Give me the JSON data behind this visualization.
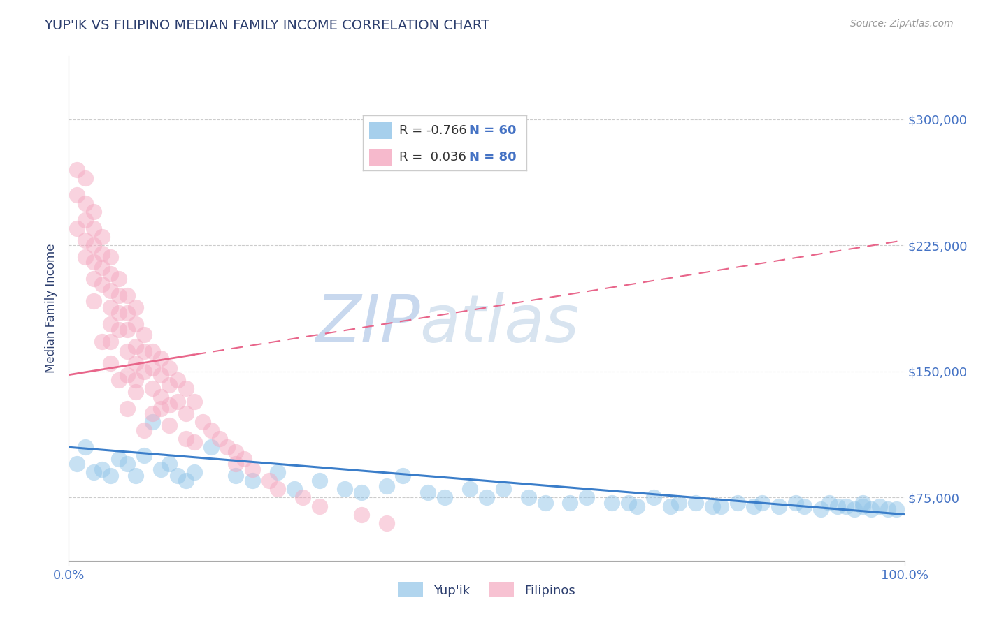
{
  "title": "YUP'IK VS FILIPINO MEDIAN FAMILY INCOME CORRELATION CHART",
  "source_text": "Source: ZipAtlas.com",
  "ylabel": "Median Family Income",
  "xlim": [
    0.0,
    1.0
  ],
  "ylim": [
    37500,
    337500
  ],
  "yticks": [
    75000,
    150000,
    225000,
    300000
  ],
  "ytick_labels": [
    "$75,000",
    "$150,000",
    "$225,000",
    "$300,000"
  ],
  "xticks": [
    0.0,
    1.0
  ],
  "xtick_labels": [
    "0.0%",
    "100.0%"
  ],
  "blue_color": "#90c4e8",
  "pink_color": "#f4a8c0",
  "blue_line_color": "#3a7dc9",
  "pink_line_color": "#e8658a",
  "title_color": "#2c3e6e",
  "axis_label_color": "#2c3e6e",
  "tick_label_color": "#4472c4",
  "watermark_color": "#dce6f5",
  "legend_text_color": "#333333",
  "legend_n_color": "#4472c4",
  "legend_R_blue": "R = -0.766",
  "legend_N_blue": "N = 60",
  "legend_R_pink": "R =  0.036",
  "legend_N_pink": "N = 80",
  "blue_intercept": 105000,
  "blue_slope": -40000,
  "pink_intercept": 148000,
  "pink_slope": 80000,
  "blue_scatter_x": [
    0.01,
    0.02,
    0.03,
    0.04,
    0.05,
    0.06,
    0.07,
    0.08,
    0.09,
    0.1,
    0.11,
    0.12,
    0.13,
    0.14,
    0.15,
    0.17,
    0.2,
    0.22,
    0.25,
    0.27,
    0.3,
    0.33,
    0.35,
    0.38,
    0.4,
    0.43,
    0.45,
    0.48,
    0.5,
    0.52,
    0.55,
    0.57,
    0.6,
    0.62,
    0.65,
    0.67,
    0.68,
    0.7,
    0.72,
    0.73,
    0.75,
    0.77,
    0.78,
    0.8,
    0.82,
    0.83,
    0.85,
    0.87,
    0.88,
    0.9,
    0.91,
    0.92,
    0.93,
    0.94,
    0.95,
    0.95,
    0.96,
    0.97,
    0.98,
    0.99
  ],
  "blue_scatter_y": [
    95000,
    105000,
    90000,
    92000,
    88000,
    98000,
    95000,
    88000,
    100000,
    120000,
    92000,
    95000,
    88000,
    85000,
    90000,
    105000,
    88000,
    85000,
    90000,
    80000,
    85000,
    80000,
    78000,
    82000,
    88000,
    78000,
    75000,
    80000,
    75000,
    80000,
    75000,
    72000,
    72000,
    75000,
    72000,
    72000,
    70000,
    75000,
    70000,
    72000,
    72000,
    70000,
    70000,
    72000,
    70000,
    72000,
    70000,
    72000,
    70000,
    68000,
    72000,
    70000,
    70000,
    68000,
    72000,
    70000,
    68000,
    70000,
    68000,
    68000
  ],
  "pink_scatter_x": [
    0.01,
    0.01,
    0.01,
    0.02,
    0.02,
    0.02,
    0.02,
    0.02,
    0.03,
    0.03,
    0.03,
    0.03,
    0.03,
    0.04,
    0.04,
    0.04,
    0.04,
    0.05,
    0.05,
    0.05,
    0.05,
    0.05,
    0.06,
    0.06,
    0.06,
    0.06,
    0.07,
    0.07,
    0.07,
    0.07,
    0.08,
    0.08,
    0.08,
    0.08,
    0.08,
    0.09,
    0.09,
    0.09,
    0.1,
    0.1,
    0.1,
    0.11,
    0.11,
    0.11,
    0.12,
    0.12,
    0.12,
    0.13,
    0.13,
    0.14,
    0.14,
    0.15,
    0.16,
    0.17,
    0.18,
    0.19,
    0.2,
    0.21,
    0.22,
    0.24,
    0.15,
    0.12,
    0.1,
    0.08,
    0.05,
    0.07,
    0.09,
    0.06,
    0.04,
    0.03,
    0.25,
    0.28,
    0.3,
    0.35,
    0.38,
    0.2,
    0.14,
    0.11,
    0.07,
    0.05
  ],
  "pink_scatter_y": [
    270000,
    255000,
    235000,
    265000,
    250000,
    240000,
    228000,
    218000,
    245000,
    235000,
    225000,
    215000,
    205000,
    230000,
    220000,
    212000,
    202000,
    218000,
    208000,
    198000,
    188000,
    178000,
    205000,
    195000,
    185000,
    175000,
    195000,
    185000,
    175000,
    162000,
    188000,
    178000,
    165000,
    155000,
    145000,
    172000,
    162000,
    150000,
    162000,
    152000,
    140000,
    158000,
    148000,
    135000,
    152000,
    142000,
    130000,
    145000,
    132000,
    140000,
    125000,
    132000,
    120000,
    115000,
    110000,
    105000,
    102000,
    98000,
    92000,
    85000,
    108000,
    118000,
    125000,
    138000,
    155000,
    128000,
    115000,
    145000,
    168000,
    192000,
    80000,
    75000,
    70000,
    65000,
    60000,
    95000,
    110000,
    128000,
    148000,
    168000
  ]
}
